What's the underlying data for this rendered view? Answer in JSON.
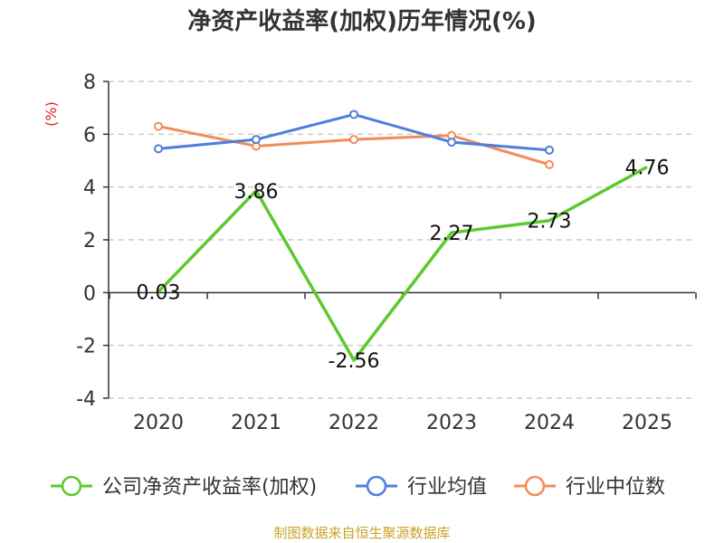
{
  "chart_data": {
    "type": "line",
    "title": "净资产收益率(加权)历年情况(%)",
    "unit": "(%)",
    "categories": [
      "2020",
      "2021",
      "2022",
      "2023",
      "2024",
      "2025"
    ],
    "ylim": [
      -4,
      8
    ],
    "yticks": [
      -4,
      -2,
      0,
      2,
      4,
      6,
      8
    ],
    "ytick_labels": [
      "-4",
      "-2",
      "0",
      "2",
      "4",
      "6",
      "8"
    ],
    "grid": true,
    "legend_position": "bottom",
    "series": [
      {
        "name": "公司净资产收益率(加权)",
        "color": "#5dc92e",
        "values": [
          0.03,
          3.86,
          -2.56,
          2.27,
          2.73,
          4.76
        ],
        "labels": [
          "0.03",
          "3.86",
          "-2.56",
          "2.27",
          "2.73",
          "4.76"
        ]
      },
      {
        "name": "行业均值",
        "color": "#4e7fdc",
        "values": [
          5.45,
          5.8,
          6.75,
          5.7,
          5.4,
          null
        ]
      },
      {
        "name": "行业中位数",
        "color": "#f28c5a",
        "values": [
          6.3,
          5.55,
          5.8,
          5.95,
          4.85,
          null
        ]
      }
    ]
  },
  "footer": {
    "source": "制图数据来自恒生聚源数据库"
  }
}
